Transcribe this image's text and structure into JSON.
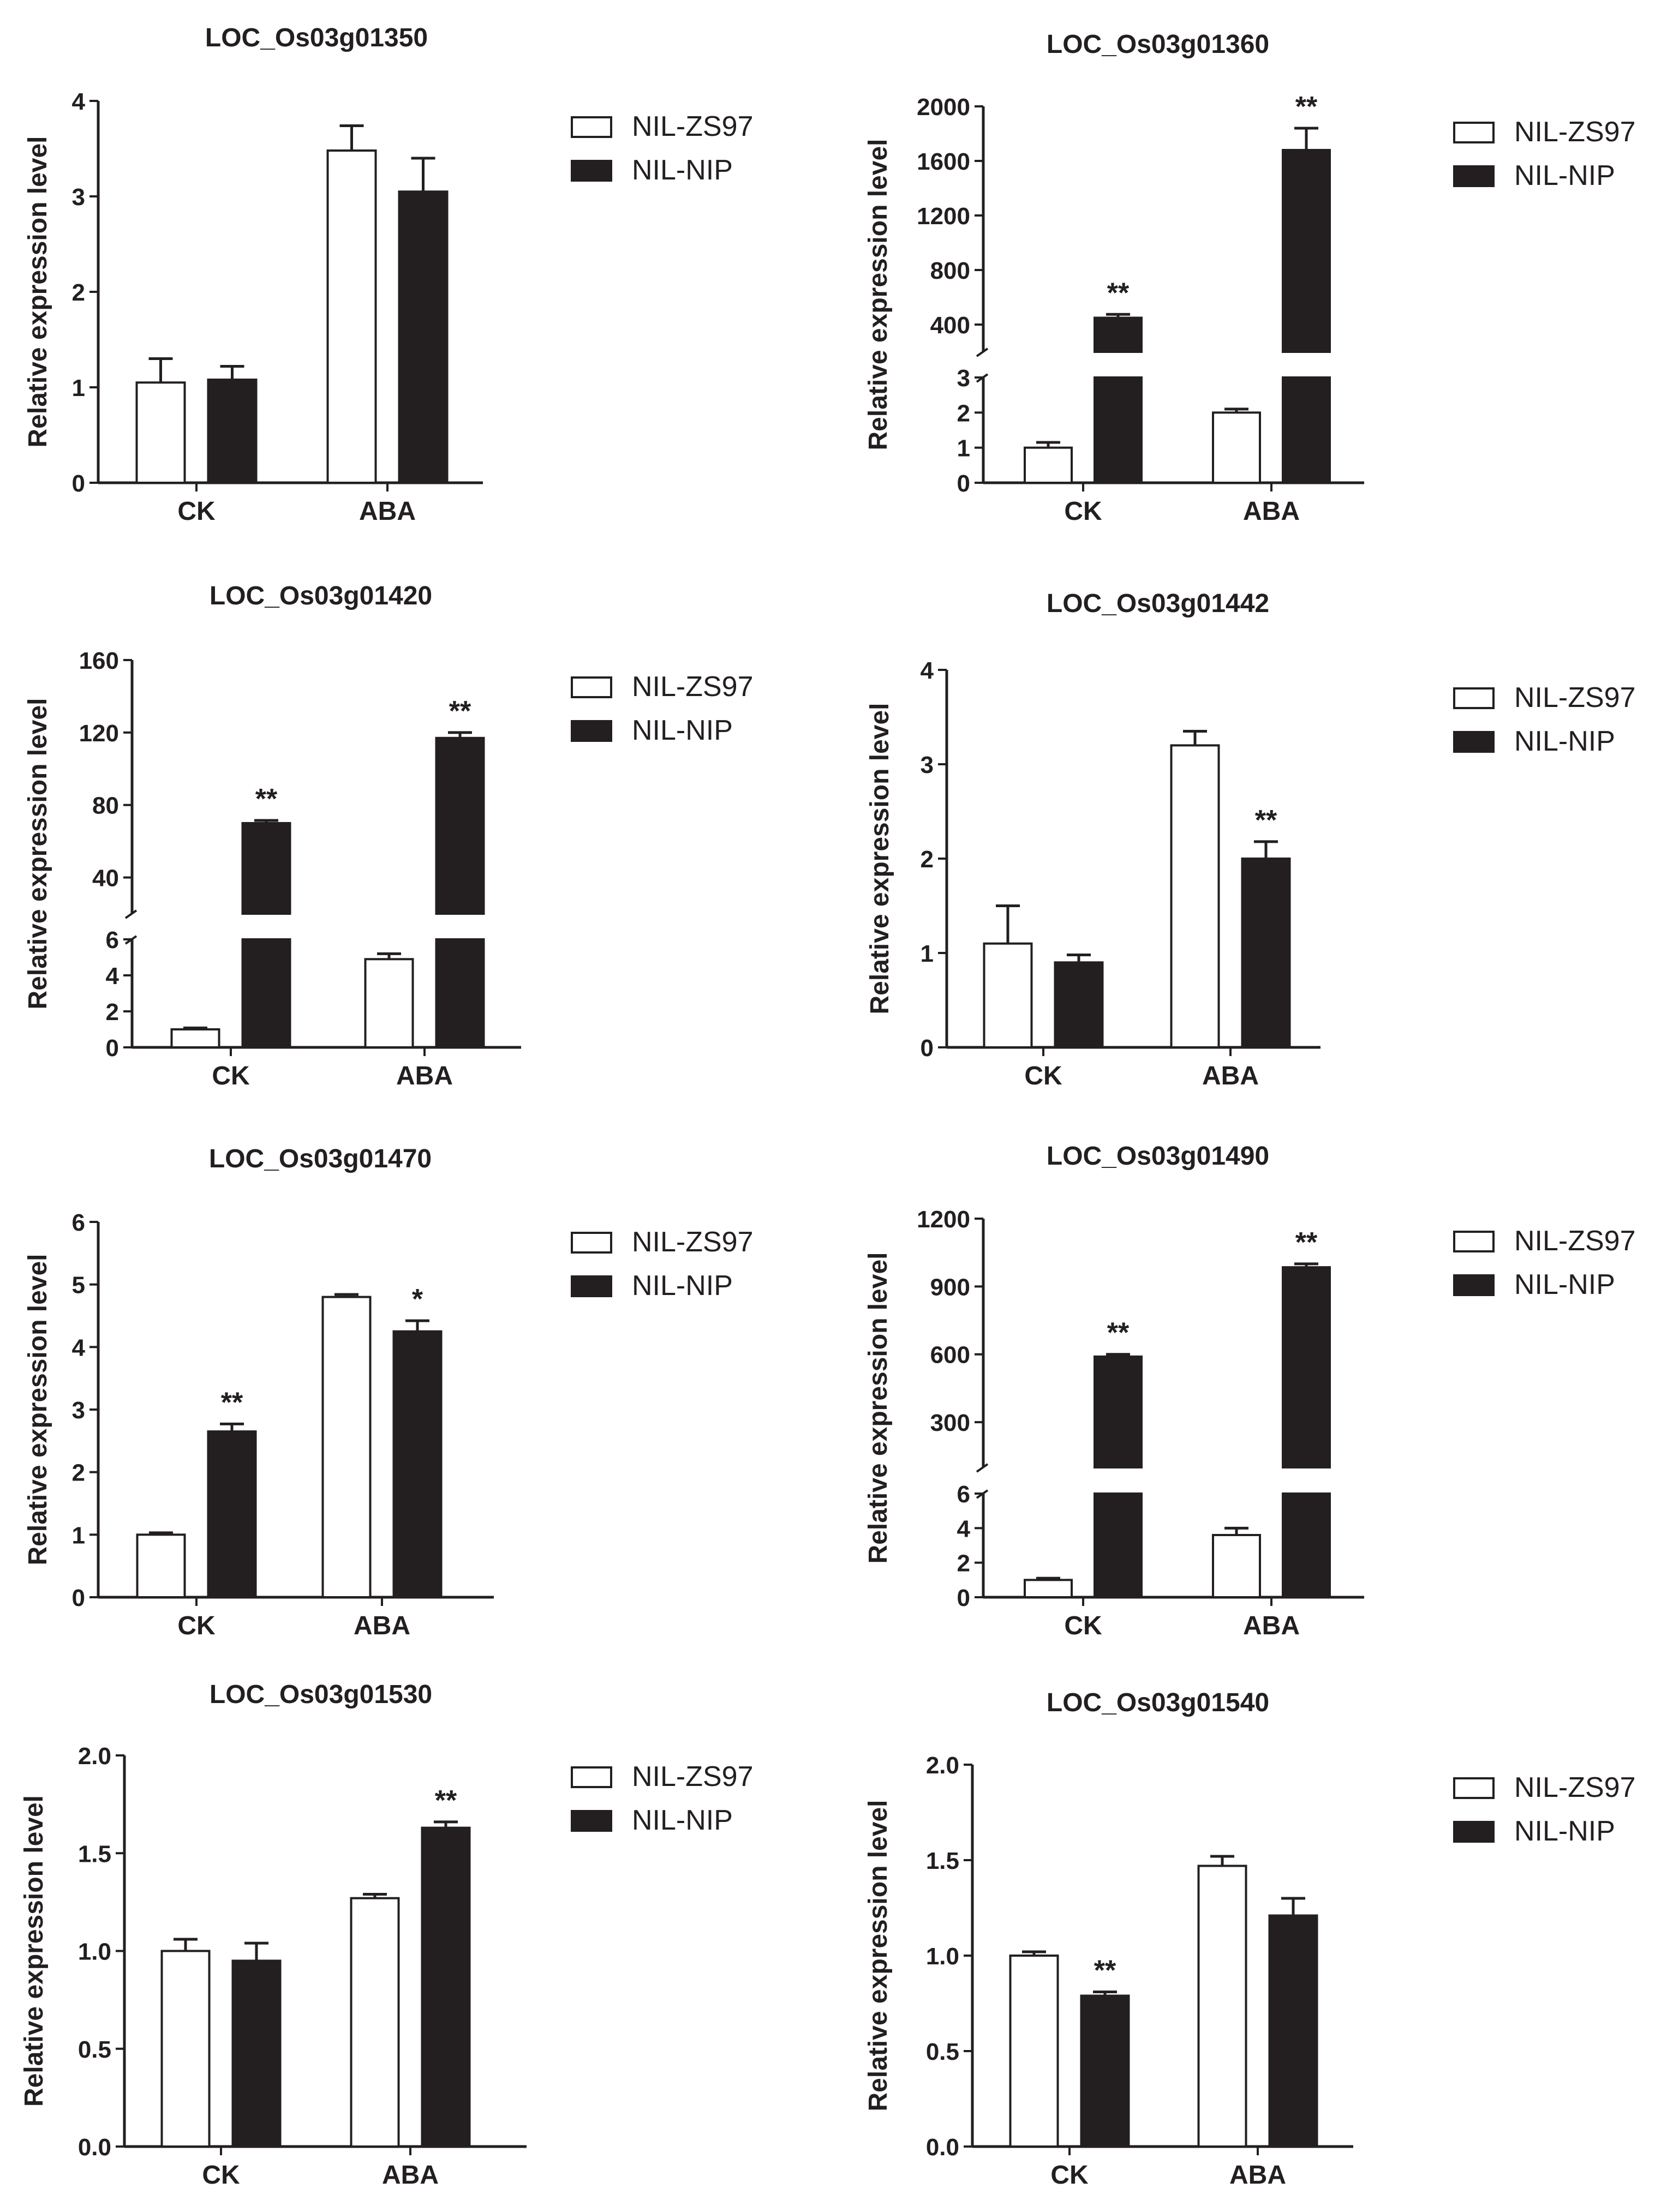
{
  "figure": {
    "legend": {
      "series_names": [
        "NIL-ZS97",
        "NIL-NIP"
      ],
      "colors": [
        "#ffffff",
        "#231f20"
      ]
    },
    "ylabel": "Relative expression level"
  },
  "chart_data": [
    {
      "type": "bar",
      "title": "LOC_Os03g01350",
      "xlabel": "",
      "ylabel": "Relative expression level",
      "categories": [
        "CK",
        "ABA"
      ],
      "series": [
        {
          "name": "NIL-ZS97",
          "values": [
            1.05,
            3.48
          ],
          "errors": [
            0.25,
            0.26
          ]
        },
        {
          "name": "NIL-NIP",
          "values": [
            1.08,
            3.05
          ],
          "errors": [
            0.14,
            0.35
          ]
        }
      ],
      "significance": [
        [
          "",
          ""
        ],
        [
          "",
          ""
        ]
      ],
      "ylim": [
        0,
        4
      ],
      "yticks": [
        "0",
        "1",
        "2",
        "3",
        "4"
      ],
      "ytick_values": [
        0,
        1,
        2,
        3,
        4
      ]
    },
    {
      "type": "bar",
      "title": "LOC_Os03g01360",
      "xlabel": "",
      "ylabel": "Relative expression level",
      "categories": [
        "CK",
        "ABA"
      ],
      "series": [
        {
          "name": "NIL-ZS97",
          "values": [
            1.0,
            2.0
          ],
          "errors": [
            0.15,
            0.1
          ]
        },
        {
          "name": "NIL-NIP",
          "values": [
            450,
            1680
          ],
          "errors": [
            25,
            160
          ]
        }
      ],
      "significance": [
        [
          "",
          ""
        ],
        [
          "**",
          "**"
        ]
      ],
      "broken_axis": {
        "lower": [
          0,
          3
        ],
        "upper": [
          200,
          2000
        ]
      },
      "yticks": [
        "0",
        "1",
        "2",
        "3",
        "400",
        "800",
        "1200",
        "1600",
        "2000"
      ],
      "ytick_values": [
        0,
        1,
        2,
        3,
        400,
        800,
        1200,
        1600,
        2000
      ]
    },
    {
      "type": "bar",
      "title": "LOC_Os03g01420",
      "xlabel": "",
      "ylabel": "Relative expression level",
      "categories": [
        "CK",
        "ABA"
      ],
      "series": [
        {
          "name": "NIL-ZS97",
          "values": [
            1.0,
            4.9
          ],
          "errors": [
            0.08,
            0.3
          ]
        },
        {
          "name": "NIL-NIP",
          "values": [
            70,
            117
          ],
          "errors": [
            1.5,
            3
          ]
        }
      ],
      "significance": [
        [
          "",
          ""
        ],
        [
          "**",
          "**"
        ]
      ],
      "broken_axis": {
        "lower": [
          0,
          6
        ],
        "upper": [
          20,
          160
        ]
      },
      "yticks": [
        "0",
        "2",
        "4",
        "6",
        "40",
        "80",
        "120",
        "160"
      ],
      "ytick_values": [
        0,
        2,
        4,
        6,
        40,
        80,
        120,
        160
      ]
    },
    {
      "type": "bar",
      "title": "LOC_Os03g01442",
      "xlabel": "",
      "ylabel": "Relative expression level",
      "categories": [
        "CK",
        "ABA"
      ],
      "series": [
        {
          "name": "NIL-ZS97",
          "values": [
            1.1,
            3.2
          ],
          "errors": [
            0.4,
            0.15
          ]
        },
        {
          "name": "NIL-NIP",
          "values": [
            0.9,
            2.0
          ],
          "errors": [
            0.08,
            0.18
          ]
        }
      ],
      "significance": [
        [
          "",
          ""
        ],
        [
          "",
          "**"
        ]
      ],
      "ylim": [
        0,
        4
      ],
      "yticks": [
        "0",
        "1",
        "2",
        "3",
        "4"
      ],
      "ytick_values": [
        0,
        1,
        2,
        3,
        4
      ]
    },
    {
      "type": "bar",
      "title": "LOC_Os03g01470",
      "xlabel": "",
      "ylabel": "Relative expression level",
      "categories": [
        "CK",
        "ABA"
      ],
      "series": [
        {
          "name": "NIL-ZS97",
          "values": [
            1.0,
            4.8
          ],
          "errors": [
            0.03,
            0.04
          ]
        },
        {
          "name": "NIL-NIP",
          "values": [
            2.65,
            4.25
          ],
          "errors": [
            0.12,
            0.17
          ]
        }
      ],
      "significance": [
        [
          "",
          ""
        ],
        [
          "**",
          "*"
        ]
      ],
      "ylim": [
        0,
        6
      ],
      "yticks": [
        "0",
        "1",
        "2",
        "3",
        "4",
        "5",
        "6"
      ],
      "ytick_values": [
        0,
        1,
        2,
        3,
        4,
        5,
        6
      ]
    },
    {
      "type": "bar",
      "title": "LOC_Os03g01490",
      "xlabel": "",
      "ylabel": "Relative expression level",
      "categories": [
        "CK",
        "ABA"
      ],
      "series": [
        {
          "name": "NIL-ZS97",
          "values": [
            1.0,
            3.6
          ],
          "errors": [
            0.1,
            0.4
          ]
        },
        {
          "name": "NIL-NIP",
          "values": [
            590,
            985
          ],
          "errors": [
            10,
            15
          ]
        }
      ],
      "significance": [
        [
          "",
          ""
        ],
        [
          "**",
          "**"
        ]
      ],
      "broken_axis": {
        "lower": [
          0,
          6
        ],
        "upper": [
          100,
          1200
        ]
      },
      "yticks": [
        "0",
        "2",
        "4",
        "6",
        "300",
        "600",
        "900",
        "1200"
      ],
      "ytick_values": [
        0,
        2,
        4,
        6,
        300,
        600,
        900,
        1200
      ]
    },
    {
      "type": "bar",
      "title": "LOC_Os03g01530",
      "xlabel": "",
      "ylabel": "Relative expression level",
      "categories": [
        "CK",
        "ABA"
      ],
      "series": [
        {
          "name": "NIL-ZS97",
          "values": [
            1.0,
            1.27
          ],
          "errors": [
            0.06,
            0.02
          ]
        },
        {
          "name": "NIL-NIP",
          "values": [
            0.95,
            1.63
          ],
          "errors": [
            0.09,
            0.03
          ]
        }
      ],
      "significance": [
        [
          "",
          ""
        ],
        [
          "",
          "**"
        ]
      ],
      "ylim": [
        0,
        2.0
      ],
      "yticks": [
        "0.0",
        "0.5",
        "1.0",
        "1.5",
        "2.0"
      ],
      "ytick_values": [
        0,
        0.5,
        1.0,
        1.5,
        2.0
      ]
    },
    {
      "type": "bar",
      "title": "LOC_Os03g01540",
      "xlabel": "",
      "ylabel": "Relative expression level",
      "categories": [
        "CK",
        "ABA"
      ],
      "series": [
        {
          "name": "NIL-ZS97",
          "values": [
            1.0,
            1.47
          ],
          "errors": [
            0.02,
            0.05
          ]
        },
        {
          "name": "NIL-NIP",
          "values": [
            0.79,
            1.21
          ],
          "errors": [
            0.02,
            0.09
          ]
        }
      ],
      "significance": [
        [
          "",
          ""
        ],
        [
          "**",
          ""
        ]
      ],
      "ylim": [
        0,
        2.0
      ],
      "yticks": [
        "0.0",
        "0.5",
        "1.0",
        "1.5",
        "2.0"
      ],
      "ytick_values": [
        0,
        0.5,
        1.0,
        1.5,
        2.0
      ]
    }
  ]
}
